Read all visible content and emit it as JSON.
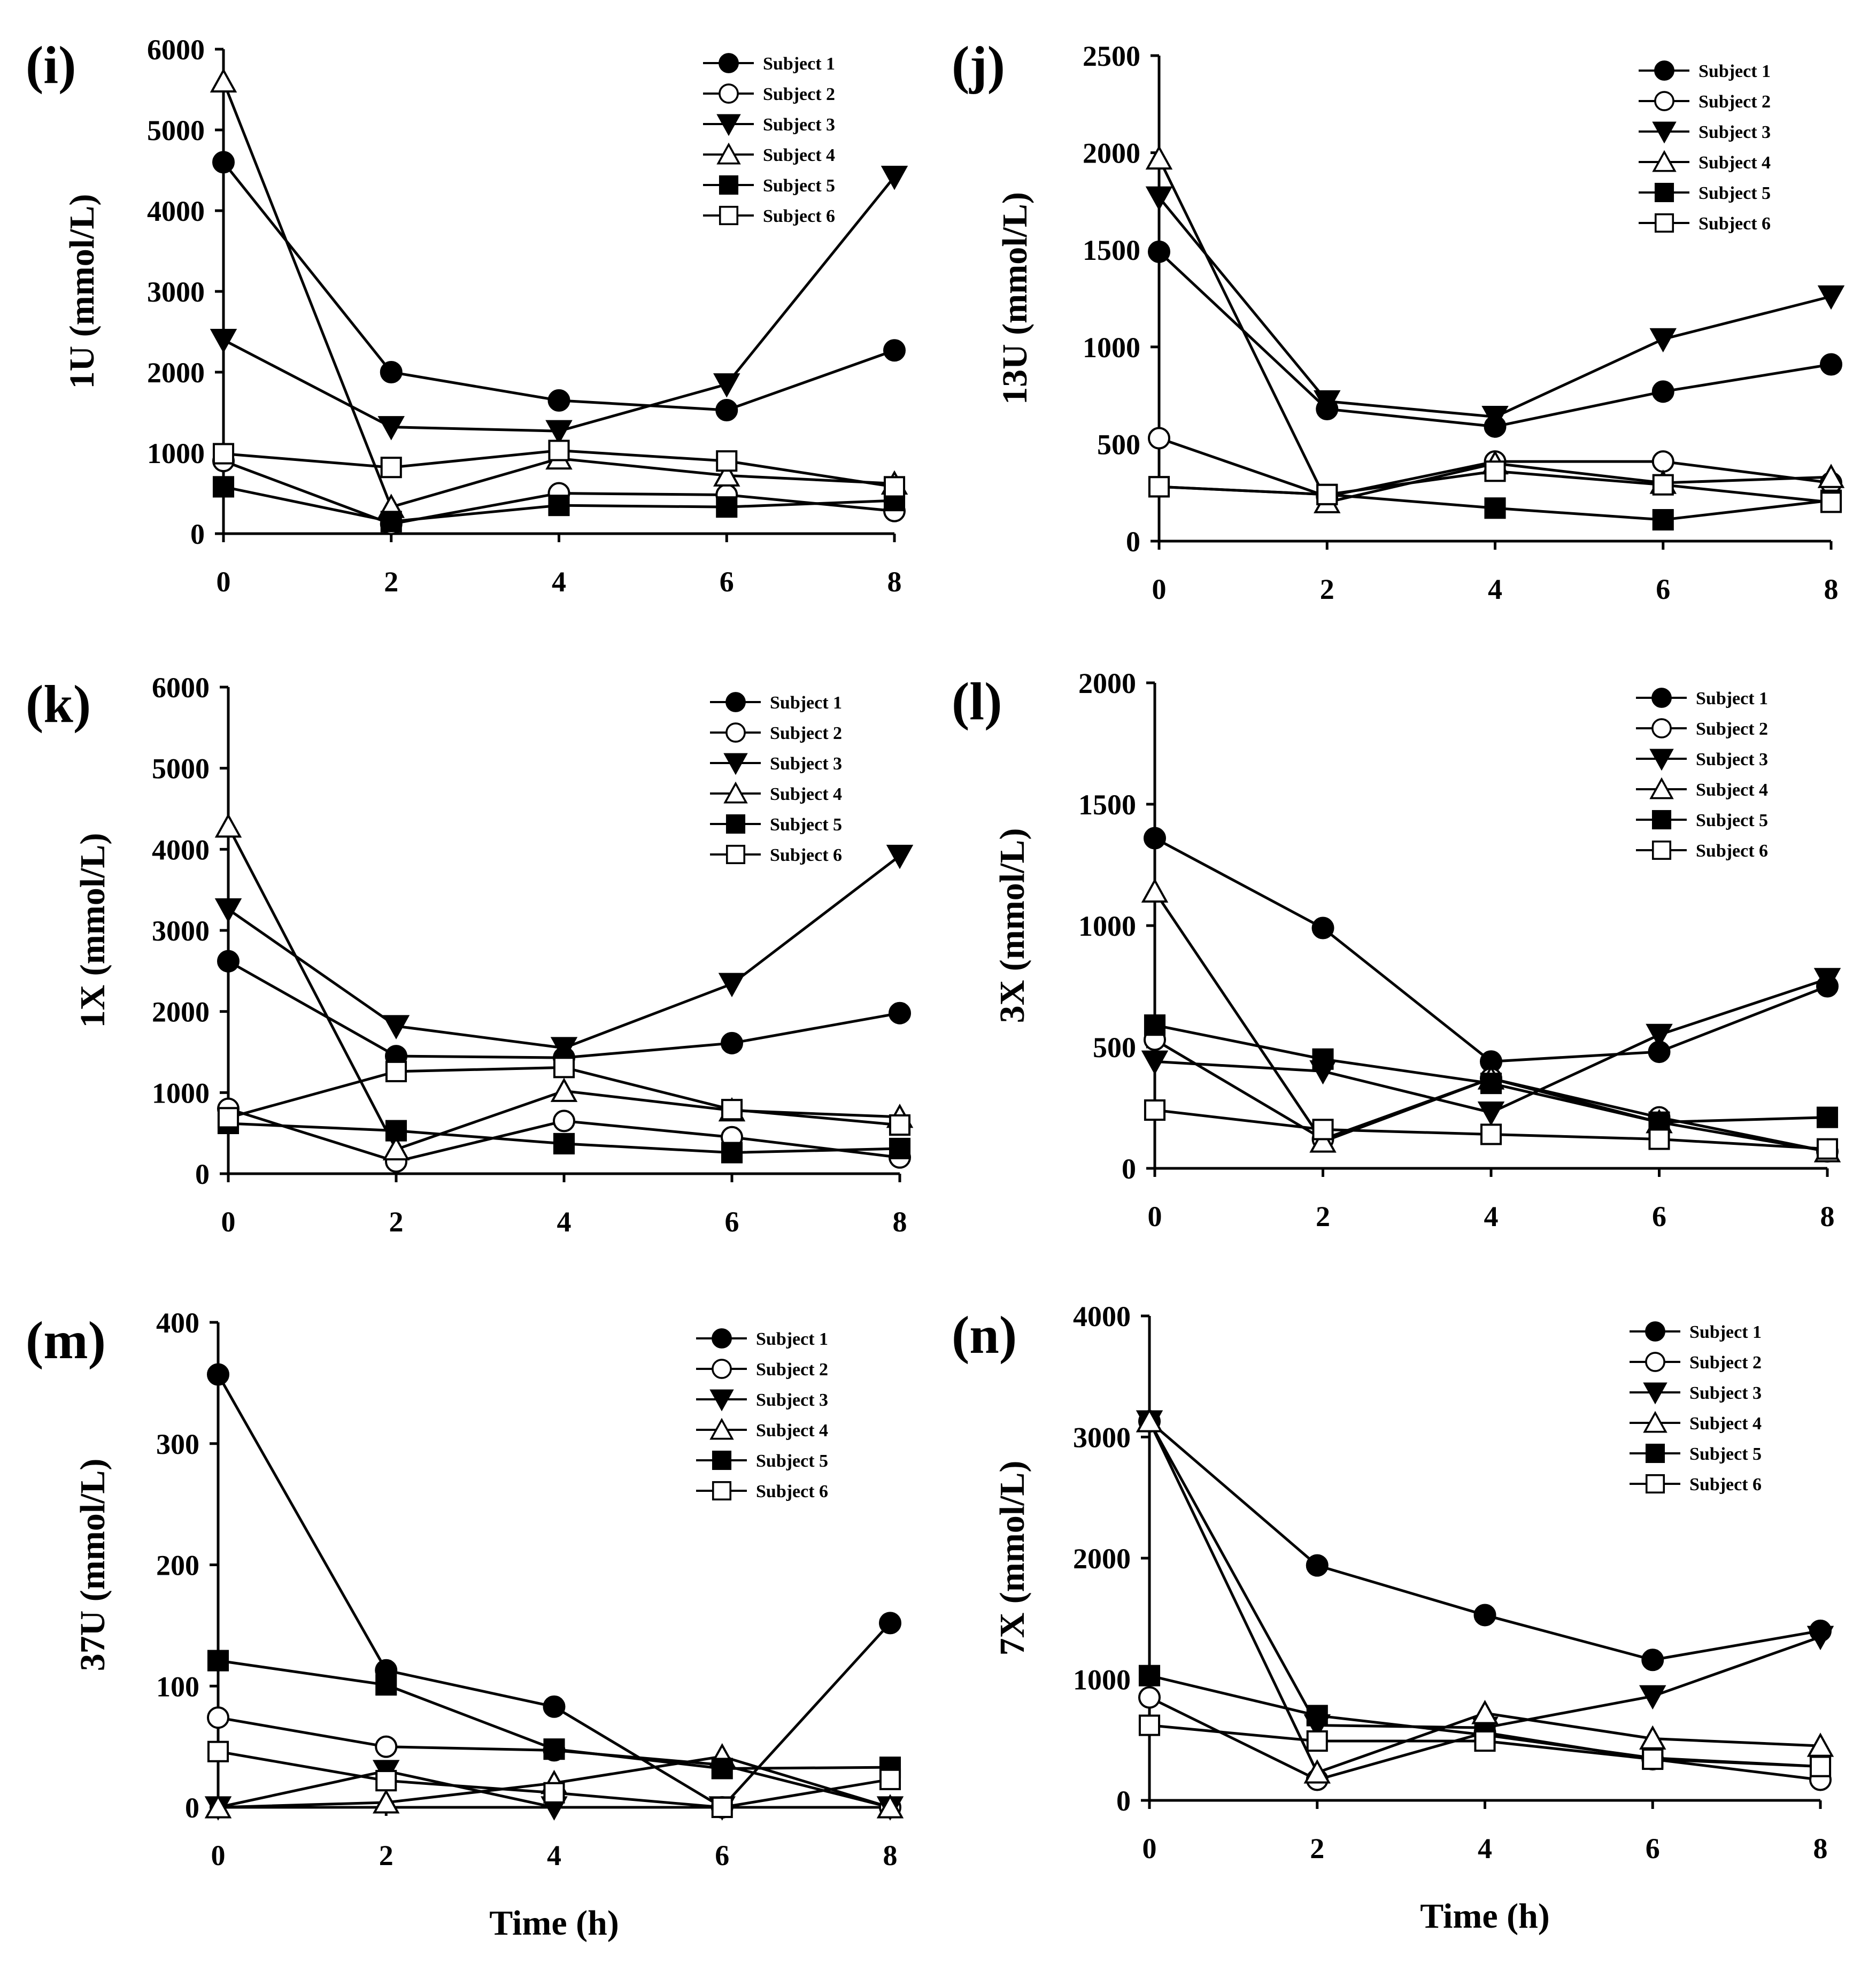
{
  "figure": {
    "x_title": "Time (h)",
    "legend": [
      "Subject 1",
      "Subject 2",
      "Subject 3",
      "Subject 4",
      "Subject 5",
      "Subject 6"
    ],
    "marker_styles": [
      "filled-circle",
      "open-circle",
      "filled-triangle-down",
      "open-triangle-up",
      "filled-square",
      "open-square"
    ]
  },
  "chart_data": [
    {
      "panel": "(i)",
      "type": "line",
      "ylabel": "1U (mmol/L)",
      "xlabel": "",
      "x": [
        0,
        2,
        4,
        6,
        8
      ],
      "xlim": [
        0,
        8
      ],
      "ylim": [
        0,
        6000
      ],
      "yticks": [
        0,
        1000,
        2000,
        3000,
        4000,
        5000,
        6000
      ],
      "series": [
        {
          "name": "Subject 1",
          "values": [
            4600,
            2000,
            1650,
            1530,
            2270
          ]
        },
        {
          "name": "Subject 2",
          "values": [
            900,
            120,
            500,
            480,
            280
          ]
        },
        {
          "name": "Subject 3",
          "values": [
            2400,
            1320,
            1270,
            1850,
            4420
          ]
        },
        {
          "name": "Subject 4",
          "values": [
            5600,
            330,
            930,
            720,
            620
          ]
        },
        {
          "name": "Subject 5",
          "values": [
            580,
            150,
            350,
            330,
            410
          ]
        },
        {
          "name": "Subject 6",
          "values": [
            990,
            820,
            1030,
            900,
            580
          ]
        }
      ]
    },
    {
      "panel": "(j)",
      "type": "line",
      "ylabel": "13U (mmol/L)",
      "xlabel": "",
      "x": [
        0,
        2,
        4,
        6,
        8
      ],
      "xlim": [
        0,
        8
      ],
      "ylim": [
        0,
        2500
      ],
      "yticks": [
        0,
        500,
        1000,
        1500,
        2000,
        2500
      ],
      "series": [
        {
          "name": "Subject 1",
          "values": [
            1490,
            680,
            590,
            770,
            910
          ]
        },
        {
          "name": "Subject 2",
          "values": [
            530,
            230,
            410,
            410,
            300
          ]
        },
        {
          "name": "Subject 3",
          "values": [
            1770,
            720,
            640,
            1040,
            1260
          ]
        },
        {
          "name": "Subject 4",
          "values": [
            1970,
            200,
            400,
            300,
            330
          ]
        },
        {
          "name": "Subject 5",
          "values": [
            280,
            240,
            170,
            110,
            210
          ]
        },
        {
          "name": "Subject 6",
          "values": [
            280,
            240,
            360,
            290,
            200
          ]
        }
      ]
    },
    {
      "panel": "(k)",
      "type": "line",
      "ylabel": "1X (mmol/L)",
      "xlabel": "",
      "x": [
        0,
        2,
        4,
        6,
        8
      ],
      "xlim": [
        0,
        8
      ],
      "ylim": [
        0,
        6000
      ],
      "yticks": [
        0,
        1000,
        2000,
        3000,
        4000,
        5000,
        6000
      ],
      "series": [
        {
          "name": "Subject 1",
          "values": [
            2620,
            1450,
            1430,
            1610,
            1980
          ]
        },
        {
          "name": "Subject 2",
          "values": [
            800,
            150,
            650,
            450,
            200
          ]
        },
        {
          "name": "Subject 3",
          "values": [
            3260,
            1820,
            1550,
            2340,
            3920
          ]
        },
        {
          "name": "Subject 4",
          "values": [
            4280,
            300,
            1020,
            780,
            700
          ]
        },
        {
          "name": "Subject 5",
          "values": [
            620,
            530,
            370,
            260,
            310
          ]
        },
        {
          "name": "Subject 6",
          "values": [
            690,
            1260,
            1310,
            790,
            600
          ]
        }
      ]
    },
    {
      "panel": "(l)",
      "type": "line",
      "ylabel": "3X (mmol/L)",
      "xlabel": "",
      "x": [
        0,
        2,
        4,
        6,
        8
      ],
      "xlim": [
        0,
        8
      ],
      "ylim": [
        0,
        2000
      ],
      "yticks": [
        0,
        500,
        1000,
        1500,
        2000
      ],
      "series": [
        {
          "name": "Subject 1",
          "values": [
            1360,
            990,
            440,
            480,
            750
          ]
        },
        {
          "name": "Subject 2",
          "values": [
            530,
            120,
            370,
            210,
            70
          ]
        },
        {
          "name": "Subject 3",
          "values": [
            440,
            400,
            230,
            550,
            780
          ]
        },
        {
          "name": "Subject 4",
          "values": [
            1140,
            110,
            370,
            190,
            70
          ]
        },
        {
          "name": "Subject 5",
          "values": [
            590,
            450,
            350,
            190,
            210
          ]
        },
        {
          "name": "Subject 6",
          "values": [
            240,
            160,
            140,
            120,
            80
          ]
        }
      ]
    },
    {
      "panel": "(m)",
      "type": "line",
      "ylabel": "37U (mmol/L)",
      "xlabel": "Time (h)",
      "x": [
        0,
        2,
        4,
        6,
        8
      ],
      "xlim": [
        0,
        8
      ],
      "ylim": [
        0,
        400
      ],
      "yticks": [
        0,
        100,
        200,
        300,
        400
      ],
      "series": [
        {
          "name": "Subject 1",
          "values": [
            357,
            113,
            83,
            0,
            152
          ]
        },
        {
          "name": "Subject 2",
          "values": [
            74,
            50,
            47,
            35,
            0
          ]
        },
        {
          "name": "Subject 3",
          "values": [
            0,
            30,
            0,
            0,
            0
          ]
        },
        {
          "name": "Subject 4",
          "values": [
            0,
            4,
            20,
            42,
            0
          ]
        },
        {
          "name": "Subject 5",
          "values": [
            121,
            101,
            48,
            32,
            33
          ]
        },
        {
          "name": "Subject 6",
          "values": [
            46,
            22,
            12,
            0,
            23
          ]
        }
      ]
    },
    {
      "panel": "(n)",
      "type": "line",
      "ylabel": "7X (mmol/L)",
      "xlabel": "Time (h)",
      "x": [
        0,
        2,
        4,
        6,
        8
      ],
      "xlim": [
        0,
        8
      ],
      "ylim": [
        0,
        4000
      ],
      "yticks": [
        0,
        1000,
        2000,
        3000,
        4000
      ],
      "series": [
        {
          "name": "Subject 1",
          "values": [
            3130,
            1940,
            1530,
            1160,
            1400
          ]
        },
        {
          "name": "Subject 2",
          "values": [
            850,
            170,
            560,
            340,
            170
          ]
        },
        {
          "name": "Subject 3",
          "values": [
            3130,
            620,
            600,
            860,
            1350
          ]
        },
        {
          "name": "Subject 4",
          "values": [
            3130,
            230,
            720,
            510,
            450
          ]
        },
        {
          "name": "Subject 5",
          "values": [
            1030,
            700,
            540,
            350,
            280
          ]
        },
        {
          "name": "Subject 6",
          "values": [
            620,
            490,
            490,
            340,
            280
          ]
        }
      ]
    }
  ]
}
